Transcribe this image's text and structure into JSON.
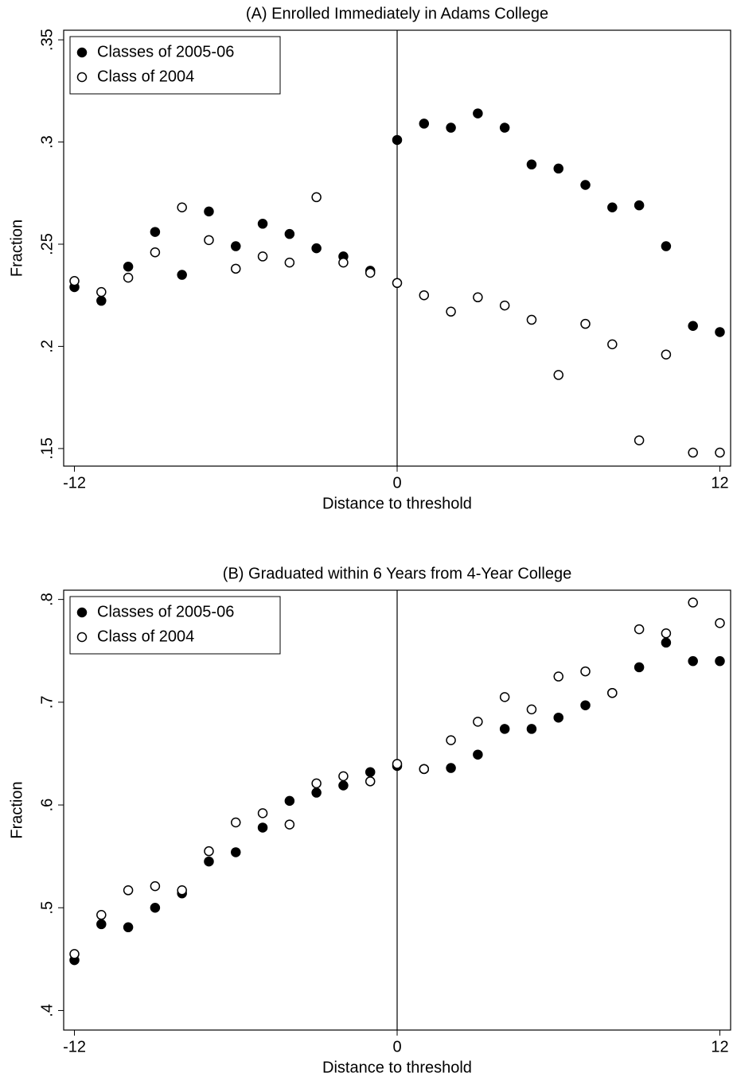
{
  "chart_data": [
    {
      "type": "scatter",
      "title": "(A) Enrolled Immediately in Adams College",
      "x_label": "Distance to threshold",
      "y_label": "Fraction",
      "x": [
        -12,
        -11,
        -10,
        -9,
        -8,
        -7,
        -6,
        -5,
        -4,
        -3,
        -2,
        -1,
        0,
        1,
        2,
        3,
        4,
        5,
        6,
        7,
        8,
        9,
        10,
        11,
        12
      ],
      "series": [
        {
          "name": "Classes of 2005-06",
          "color": "#000000",
          "filled": true,
          "values": [
            0.229,
            0.2223,
            0.239,
            0.256,
            0.235,
            0.266,
            0.249,
            0.26,
            0.255,
            0.248,
            0.244,
            0.237,
            0.301,
            0.309,
            0.307,
            0.314,
            0.307,
            0.289,
            0.287,
            0.279,
            0.268,
            0.269,
            0.249,
            0.21,
            0.207
          ]
        },
        {
          "name": "Class of 2004",
          "color": "#000000",
          "filled": false,
          "values": [
            0.232,
            0.2266,
            0.2336,
            0.246,
            0.268,
            0.252,
            0.238,
            0.244,
            0.241,
            0.273,
            0.241,
            0.236,
            0.231,
            0.225,
            0.217,
            0.224,
            0.22,
            0.213,
            0.186,
            0.211,
            0.201,
            0.154,
            0.196,
            0.148,
            0.148
          ]
        }
      ],
      "xlim": [
        -12.4,
        12.4
      ],
      "xticks": [
        -12,
        0,
        12
      ],
      "ylim": [
        0.1414,
        0.3547
      ],
      "yticks": [
        {
          "value": 0.15,
          "label": ".15"
        },
        {
          "value": 0.2,
          "label": ".2"
        },
        {
          "value": 0.25,
          "label": ".25"
        },
        {
          "value": 0.3,
          "label": ".3"
        },
        {
          "value": 0.35,
          "label": ".35"
        }
      ],
      "vline": 0,
      "legend": "upper left"
    },
    {
      "type": "scatter",
      "title": "(B) Graduated within 6 Years from 4-Year College",
      "x_label": "Distance to threshold",
      "y_label": "Fraction",
      "x": [
        -12,
        -11,
        -10,
        -9,
        -8,
        -7,
        -6,
        -5,
        -4,
        -3,
        -2,
        -1,
        0,
        1,
        2,
        3,
        4,
        5,
        6,
        7,
        8,
        9,
        10,
        11,
        12
      ],
      "series": [
        {
          "name": "Classes of 2005-06",
          "color": "#000000",
          "filled": true,
          "values": [
            0.449,
            0.484,
            0.481,
            0.5,
            0.514,
            0.545,
            0.554,
            0.578,
            0.604,
            0.612,
            0.619,
            0.632,
            0.638,
            0.635,
            0.636,
            0.649,
            0.674,
            0.674,
            0.685,
            0.697,
            0.709,
            0.734,
            0.758,
            0.74,
            0.74
          ]
        },
        {
          "name": "Class of 2004",
          "color": "#000000",
          "filled": false,
          "values": [
            0.455,
            0.493,
            0.517,
            0.521,
            0.517,
            0.555,
            0.583,
            0.592,
            0.581,
            0.621,
            0.628,
            0.623,
            0.64,
            0.635,
            0.663,
            0.681,
            0.705,
            0.693,
            0.725,
            0.73,
            0.709,
            0.771,
            0.767,
            0.797,
            0.777
          ]
        }
      ],
      "xlim": [
        -12.4,
        12.4
      ],
      "xticks": [
        -12,
        0,
        12
      ],
      "ylim": [
        0.381,
        0.809
      ],
      "yticks": [
        {
          "value": 0.4,
          "label": ".4"
        },
        {
          "value": 0.5,
          "label": ".5"
        },
        {
          "value": 0.6,
          "label": ".6"
        },
        {
          "value": 0.7,
          "label": ".7"
        },
        {
          "value": 0.8,
          "label": ".8"
        }
      ],
      "vline": 0,
      "legend": "upper left"
    }
  ]
}
